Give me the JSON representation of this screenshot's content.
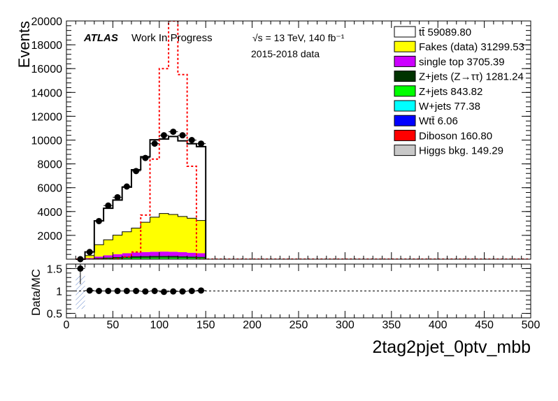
{
  "chart_data": [
    {
      "type": "histogram",
      "panel": "main",
      "ylabel": "Events",
      "ylim": [
        0,
        20000
      ],
      "yticks": [
        2000,
        4000,
        6000,
        8000,
        10000,
        12000,
        14000,
        16000,
        18000,
        20000
      ],
      "ytick_labels": [
        "2000",
        "4000",
        "6000",
        "8000",
        "10000",
        "12000",
        "14000",
        "16000",
        "18000",
        "20000"
      ],
      "xlim": [
        0,
        500
      ],
      "bin_edges": [
        10,
        20,
        30,
        40,
        50,
        60,
        70,
        80,
        90,
        100,
        110,
        120,
        130,
        140,
        150
      ],
      "stacked_series": [
        {
          "name": "Higgs bkg. 149.29",
          "color": "#c8c8c8",
          "values": [
            0,
            2,
            5,
            8,
            10,
            12,
            14,
            16,
            17,
            18,
            18,
            17,
            16,
            15
          ]
        },
        {
          "name": "Diboson 160.80",
          "color": "#ff0000",
          "values": [
            0,
            3,
            6,
            9,
            11,
            13,
            15,
            17,
            18,
            19,
            19,
            18,
            17,
            16
          ]
        },
        {
          "name": "Wtt̄ 6.06",
          "color": "#0000ff",
          "values": [
            0,
            0,
            0,
            0,
            0,
            0,
            1,
            1,
            1,
            1,
            1,
            1,
            0,
            0
          ]
        },
        {
          "name": "W+jets 77.38",
          "color": "#00ffff",
          "values": [
            0,
            1,
            3,
            4,
            6,
            7,
            8,
            9,
            9,
            9,
            8,
            7,
            6,
            5
          ]
        },
        {
          "name": "Z+jets 843.82",
          "color": "#00ff00",
          "values": [
            0,
            10,
            30,
            45,
            60,
            70,
            80,
            85,
            90,
            90,
            85,
            80,
            70,
            65
          ]
        },
        {
          "name": "Z+jets (Z→ττ) 1281.24",
          "color": "#003300",
          "values": [
            0,
            20,
            45,
            70,
            90,
            110,
            120,
            130,
            135,
            135,
            130,
            120,
            110,
            100
          ]
        },
        {
          "name": "single top 3705.39",
          "color": "#cc00ff",
          "values": [
            0,
            50,
            130,
            190,
            240,
            290,
            320,
            340,
            355,
            365,
            360,
            340,
            320,
            300
          ]
        },
        {
          "name": "Fakes (data) 31299.53",
          "color": "#ffff00",
          "values": [
            0,
            220,
            1000,
            1300,
            1600,
            1800,
            2050,
            2500,
            2900,
            3200,
            3130,
            3000,
            2900,
            2750
          ]
        },
        {
          "name": "tt̄ 59089.80",
          "color": "#ffffff",
          "values": [
            0,
            300,
            2000,
            2650,
            2950,
            3750,
            4900,
            5500,
            6500,
            6250,
            6550,
            6350,
            6250,
            6200
          ]
        }
      ],
      "signal": {
        "color": "#ff0000",
        "style": "dashed",
        "values": [
          0,
          0,
          0,
          0,
          50,
          200,
          600,
          3700,
          8400,
          16000,
          20000,
          15500,
          7800,
          0
        ]
      },
      "data_points": {
        "x": [
          15,
          25,
          35,
          45,
          55,
          65,
          75,
          85,
          95,
          105,
          115,
          125,
          135,
          145
        ],
        "y": [
          0,
          600,
          3200,
          4500,
          5200,
          6100,
          7400,
          8500,
          9700,
          10400,
          10700,
          10400,
          10000,
          9700
        ]
      },
      "legend": [
        "tt̄ 59089.80",
        "Fakes (data) 31299.53",
        "single top 3705.39",
        "Z+jets (Z→ττ) 1281.24",
        "Z+jets 843.82",
        "W+jets 77.38",
        "Wtt̄ 6.06",
        "Diboson 160.80",
        "Higgs bkg. 149.29"
      ],
      "legend_placement": "top-right",
      "annotations": {
        "atlas": "ATLAS",
        "status": "Work In Progress",
        "energy": "√s = 13 TeV, 140 fb⁻¹",
        "dataset": "2015-2018 data"
      }
    },
    {
      "type": "scatter",
      "panel": "ratio",
      "ylabel": "Data/MC",
      "ylim": [
        0.4,
        1.6
      ],
      "yticks": [
        0.5,
        1,
        1.5
      ],
      "ytick_labels": [
        "0.5",
        "1",
        "1.5"
      ],
      "reference_line": 1,
      "x": [
        15,
        25,
        35,
        45,
        55,
        65,
        75,
        85,
        95,
        105,
        115,
        125,
        135,
        145
      ],
      "y": [
        1.5,
        1.01,
        1.0,
        1.0,
        1.0,
        1.0,
        1.0,
        0.99,
        1.0,
        0.98,
        0.99,
        0.99,
        1.0,
        1.01
      ],
      "xlabel": "2tag2pjet_0ptv_mbb",
      "xlim": [
        0,
        500
      ],
      "xticks": [
        0,
        50,
        100,
        150,
        200,
        250,
        300,
        350,
        400,
        450,
        500
      ],
      "xtick_labels": [
        "0",
        "50",
        "100",
        "150",
        "200",
        "250",
        "300",
        "350",
        "400",
        "450",
        "500"
      ]
    }
  ]
}
